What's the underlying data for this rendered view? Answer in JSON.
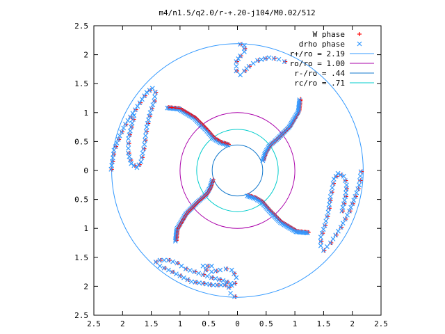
{
  "chart_data": {
    "type": "scatter",
    "title": "m4/n1.5/q2.0/r-+.20-j104/M0.02/512",
    "xlim": [
      -2.5,
      2.5
    ],
    "ylim": [
      -2.5,
      2.5
    ],
    "x_ticks": [
      {
        "v": -2.5,
        "label": "2.5"
      },
      {
        "v": -2,
        "label": "2"
      },
      {
        "v": -1.5,
        "label": "1.5"
      },
      {
        "v": -1,
        "label": "1"
      },
      {
        "v": -0.5,
        "label": "0.5"
      },
      {
        "v": 0,
        "label": "0"
      },
      {
        "v": 0.5,
        "label": "0.5"
      },
      {
        "v": 1,
        "label": "1"
      },
      {
        "v": 1.5,
        "label": "1.5"
      },
      {
        "v": 2,
        "label": "2"
      },
      {
        "v": 2.5,
        "label": "2.5"
      }
    ],
    "y_ticks": [
      {
        "v": 2.5,
        "label": "2.5"
      },
      {
        "v": 2,
        "label": "2"
      },
      {
        "v": 1.5,
        "label": "1.5"
      },
      {
        "v": 1,
        "label": "1"
      },
      {
        "v": 0.5,
        "label": "0.5"
      },
      {
        "v": 0,
        "label": "0"
      },
      {
        "v": -0.5,
        "label": "0.5"
      },
      {
        "v": -1,
        "label": "1"
      },
      {
        "v": -1.5,
        "label": "1.5"
      },
      {
        "v": -2,
        "label": "2"
      },
      {
        "v": -2.5,
        "label": "2.5"
      }
    ],
    "grid": false,
    "legend_position": "top-right",
    "series": [
      {
        "name": "W phase",
        "marker": "plus",
        "color": "#ff0000"
      },
      {
        "name": "drho phase",
        "marker": "cross",
        "color": "#3399ff"
      }
    ],
    "circles": [
      {
        "name": "r+/ro = 2.19",
        "r": 2.19,
        "color": "#3399ff"
      },
      {
        "name": "ro/ro = 1.00",
        "r": 1.0,
        "color": "#aa00aa"
      },
      {
        "name": "r-/ro = .44",
        "r": 0.44,
        "color": "#1177cc"
      },
      {
        "name": "rc/ro = .71",
        "r": 0.71,
        "color": "#00cccc"
      }
    ],
    "arms": [
      [
        [
          0.44,
          0.17
        ],
        [
          0.48,
          0.3
        ],
        [
          0.55,
          0.42
        ],
        [
          0.7,
          0.55
        ],
        [
          0.9,
          0.75
        ],
        [
          1.06,
          1.02
        ],
        [
          1.08,
          1.22
        ]
      ],
      [
        [
          -0.44,
          -0.17
        ],
        [
          -0.48,
          -0.3
        ],
        [
          -0.55,
          -0.42
        ],
        [
          -0.7,
          -0.55
        ],
        [
          -0.9,
          -0.75
        ],
        [
          -1.06,
          -1.02
        ],
        [
          -1.08,
          -1.22
        ]
      ],
      [
        [
          -0.17,
          0.44
        ],
        [
          -0.3,
          0.48
        ],
        [
          -0.42,
          0.55
        ],
        [
          -0.55,
          0.7
        ],
        [
          -0.75,
          0.9
        ],
        [
          -1.02,
          1.06
        ],
        [
          -1.22,
          1.08
        ]
      ],
      [
        [
          0.17,
          -0.44
        ],
        [
          0.3,
          -0.48
        ],
        [
          0.42,
          -0.55
        ],
        [
          0.55,
          -0.7
        ],
        [
          0.75,
          -0.9
        ],
        [
          1.02,
          -1.06
        ],
        [
          1.22,
          -1.08
        ]
      ]
    ],
    "arcs": [
      [
        [
          0.05,
          2.18
        ],
        [
          0.12,
          2.16
        ],
        [
          0.12,
          2.05
        ],
        [
          0.05,
          1.98
        ],
        [
          -0.02,
          1.88
        ],
        [
          -0.02,
          1.72
        ],
        [
          0.05,
          1.65
        ],
        [
          0.12,
          1.72
        ],
        [
          0.2,
          1.8
        ],
        [
          0.35,
          1.9
        ],
        [
          0.55,
          1.95
        ],
        [
          0.72,
          1.92
        ],
        [
          0.82,
          1.88
        ]
      ],
      [
        [
          -2.2,
          0.02
        ],
        [
          -2.15,
          0.35
        ],
        [
          -2.05,
          0.6
        ],
        [
          -1.95,
          0.8
        ],
        [
          -1.78,
          1.05
        ],
        [
          -1.58,
          1.35
        ],
        [
          -1.48,
          1.42
        ],
        [
          -1.43,
          1.35
        ],
        [
          -1.45,
          1.2
        ],
        [
          -1.52,
          1.0
        ],
        [
          -1.58,
          0.75
        ],
        [
          -1.62,
          0.45
        ],
        [
          -1.68,
          0.15
        ],
        [
          -1.75,
          0.05
        ],
        [
          -1.85,
          0.12
        ],
        [
          -1.9,
          0.3
        ],
        [
          -1.9,
          0.55
        ],
        [
          -1.85,
          0.75
        ],
        [
          -1.8,
          0.95
        ]
      ],
      [
        [
          -0.05,
          -2.18
        ],
        [
          -0.12,
          -2.12
        ],
        [
          -0.15,
          -2.02
        ],
        [
          -0.05,
          -1.95
        ],
        [
          -0.02,
          -1.85
        ],
        [
          -0.1,
          -1.72
        ],
        [
          -0.2,
          -1.7
        ],
        [
          -0.3,
          -1.72
        ],
        [
          -0.45,
          -1.75
        ],
        [
          -0.55,
          -1.72
        ],
        [
          -0.6,
          -1.65
        ],
        [
          -0.45,
          -1.65
        ]
      ],
      [
        [
          -1.42,
          -1.58
        ],
        [
          -1.35,
          -1.65
        ],
        [
          -1.2,
          -1.72
        ],
        [
          -1.0,
          -1.82
        ],
        [
          -0.8,
          -1.92
        ],
        [
          -0.6,
          -1.95
        ],
        [
          -0.42,
          -1.98
        ],
        [
          -0.22,
          -1.98
        ],
        [
          -0.12,
          -1.95
        ],
        [
          -0.25,
          -1.9
        ],
        [
          -0.45,
          -1.85
        ],
        [
          -0.6,
          -1.8
        ],
        [
          -0.75,
          -1.75
        ],
        [
          -0.9,
          -1.7
        ],
        [
          -1.05,
          -1.6
        ],
        [
          -1.2,
          -1.55
        ],
        [
          -1.35,
          -1.55
        ]
      ],
      [
        [
          2.15,
          -0.02
        ],
        [
          2.12,
          -0.25
        ],
        [
          2.05,
          -0.45
        ],
        [
          1.95,
          -0.7
        ],
        [
          1.8,
          -0.98
        ],
        [
          1.62,
          -1.25
        ],
        [
          1.5,
          -1.38
        ],
        [
          1.45,
          -1.3
        ],
        [
          1.45,
          -1.15
        ],
        [
          1.52,
          -0.95
        ],
        [
          1.58,
          -0.72
        ],
        [
          1.62,
          -0.45
        ],
        [
          1.68,
          -0.15
        ],
        [
          1.75,
          -0.05
        ],
        [
          1.85,
          -0.1
        ],
        [
          1.9,
          -0.25
        ],
        [
          1.88,
          -0.45
        ],
        [
          1.82,
          -0.7
        ]
      ]
    ]
  }
}
